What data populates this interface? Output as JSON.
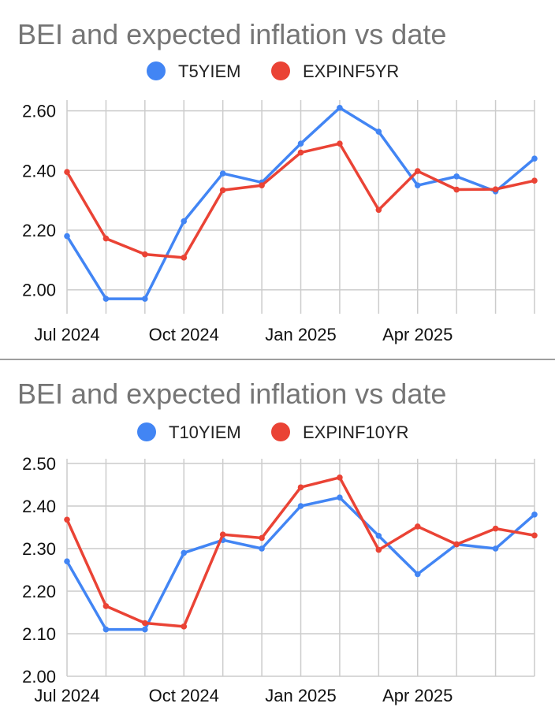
{
  "chart_data": [
    {
      "type": "line",
      "title": "BEI and expected inflation vs date",
      "x": [
        "2024-07",
        "2024-08",
        "2024-09",
        "2024-10",
        "2024-11",
        "2024-12",
        "2025-01",
        "2025-02",
        "2025-03",
        "2025-04",
        "2025-05",
        "2025-06",
        "2025-07"
      ],
      "x_tick_labels": [
        "Jul 2024",
        "Oct 2024",
        "Jan 2025",
        "Apr 2025"
      ],
      "x_tick_positions": [
        "2024-07",
        "2024-10",
        "2025-01",
        "2025-04"
      ],
      "ylim": [
        1.92,
        2.62
      ],
      "yticks": [
        2.0,
        2.2,
        2.4,
        2.6
      ],
      "y_tick_labels": [
        "2.00",
        "2.20",
        "2.40",
        "2.60"
      ],
      "legend_position": "top",
      "series": [
        {
          "name": "T5YIEM",
          "color": "#4285f4",
          "values": [
            2.18,
            1.97,
            1.97,
            2.23,
            2.39,
            2.36,
            2.49,
            2.61,
            2.53,
            2.35,
            2.38,
            2.33,
            2.44
          ]
        },
        {
          "name": "EXPINF5YR",
          "color": "#ea4335",
          "values": [
            2.395,
            2.172,
            2.119,
            2.108,
            2.334,
            2.35,
            2.46,
            2.49,
            2.268,
            2.398,
            2.336,
            2.337,
            2.366
          ]
        }
      ]
    },
    {
      "type": "line",
      "title": "BEI and expected inflation vs date",
      "x": [
        "2024-07",
        "2024-08",
        "2024-09",
        "2024-10",
        "2024-11",
        "2024-12",
        "2025-01",
        "2025-02",
        "2025-03",
        "2025-04",
        "2025-05",
        "2025-06",
        "2025-07"
      ],
      "x_tick_labels": [
        "Jul 2024",
        "Oct 2024",
        "Jan 2025",
        "Apr 2025"
      ],
      "x_tick_positions": [
        "2024-07",
        "2024-10",
        "2025-01",
        "2025-04"
      ],
      "ylim": [
        2.0,
        2.5
      ],
      "yticks": [
        2.0,
        2.1,
        2.2,
        2.3,
        2.4,
        2.5
      ],
      "y_tick_labels": [
        "2.00",
        "2.10",
        "2.20",
        "2.30",
        "2.40",
        "2.50"
      ],
      "legend_position": "top",
      "series": [
        {
          "name": "T10YIEM",
          "color": "#4285f4",
          "values": [
            2.27,
            2.11,
            2.11,
            2.29,
            2.32,
            2.3,
            2.4,
            2.42,
            2.33,
            2.24,
            2.31,
            2.3,
            2.38
          ]
        },
        {
          "name": "EXPINF10YR",
          "color": "#ea4335",
          "values": [
            2.368,
            2.165,
            2.125,
            2.117,
            2.333,
            2.325,
            2.444,
            2.467,
            2.297,
            2.352,
            2.31,
            2.347,
            2.331
          ]
        }
      ]
    }
  ]
}
